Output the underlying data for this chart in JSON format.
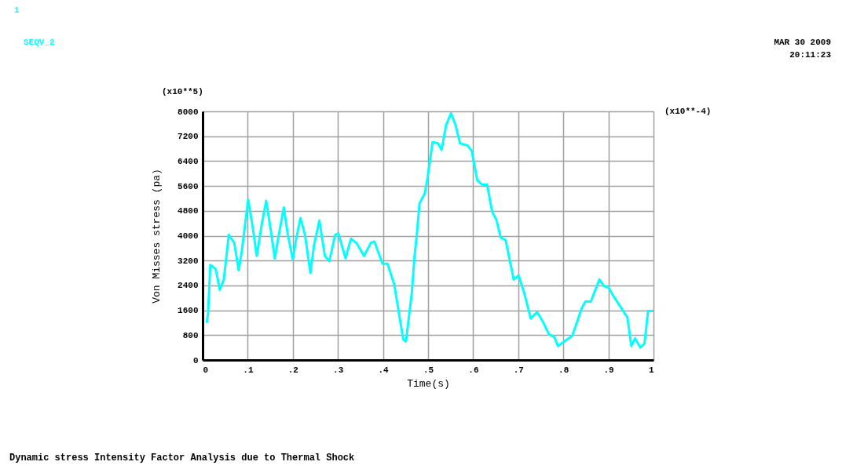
{
  "chart_data": {
    "type": "line",
    "xlabel": "Time(s)",
    "ylabel": "Von Misses stress (pa)",
    "annotations": [
      "1",
      "(x10**5)",
      "(x10**-4)",
      "MAR 30 2009",
      "20:11:23",
      "Dynamic stress Intensity Factor  Analysis due to Thermal Shock"
    ],
    "xlim": [
      0,
      1
    ],
    "ylim": [
      0,
      8000
    ],
    "xticks": [
      0,
      {
        "value": 0.1,
        "label": ".1"
      },
      {
        "value": 0.2,
        "label": ".2"
      },
      {
        "value": 0.3,
        "label": ".3"
      },
      {
        "value": 0.4,
        "label": ".4"
      },
      {
        "value": 0.5,
        "label": ".5"
      },
      {
        "value": 0.6,
        "label": ".6"
      },
      {
        "value": 0.7,
        "label": ".7"
      },
      {
        "value": 0.8,
        "label": ".8"
      },
      {
        "value": 0.9,
        "label": ".9"
      },
      1
    ],
    "yticks": [
      0,
      800,
      1600,
      2400,
      3200,
      4000,
      4800,
      5600,
      6400,
      7200,
      8000
    ],
    "grid": true,
    "legend": "top left",
    "marker": "none",
    "line_style": "solid",
    "series": [
      {
        "name": "SEQV_2",
        "color": "#00ffff",
        "x": [
          0.009,
          0.012,
          0.017,
          0.029,
          0.038,
          0.047,
          0.058,
          0.07,
          0.08,
          0.087,
          0.101,
          0.111,
          0.12,
          0.131,
          0.141,
          0.151,
          0.16,
          0.169,
          0.18,
          0.189,
          0.2,
          0.207,
          0.217,
          0.227,
          0.239,
          0.247,
          0.259,
          0.271,
          0.281,
          0.294,
          0.301,
          0.317,
          0.329,
          0.341,
          0.358,
          0.373,
          0.381,
          0.399,
          0.41,
          0.425,
          0.445,
          0.451,
          0.464,
          0.47,
          0.475,
          0.481,
          0.493,
          0.499,
          0.51,
          0.522,
          0.53,
          0.54,
          0.551,
          0.561,
          0.571,
          0.588,
          0.597,
          0.609,
          0.62,
          0.631,
          0.642,
          0.652,
          0.661,
          0.672,
          0.69,
          0.701,
          0.713,
          0.728,
          0.733,
          0.742,
          0.754,
          0.768,
          0.78,
          0.788,
          0.82,
          0.841,
          0.849,
          0.861,
          0.88,
          0.89,
          0.9,
          0.91,
          0.925,
          0.942,
          0.951,
          0.959,
          0.971,
          0.98,
          0.988,
          1.0
        ],
        "values": [
          1200,
          1500,
          3060,
          2930,
          2260,
          2590,
          4030,
          3770,
          2890,
          3520,
          5160,
          4280,
          3350,
          4360,
          5120,
          4190,
          3270,
          4030,
          4910,
          4030,
          3230,
          3860,
          4570,
          4030,
          2800,
          3690,
          4490,
          3350,
          3180,
          4030,
          4070,
          3270,
          3900,
          3770,
          3350,
          3770,
          3810,
          3100,
          3100,
          2430,
          660,
          600,
          2170,
          3350,
          4030,
          5040,
          5370,
          5880,
          7010,
          6970,
          6760,
          7560,
          7940,
          7560,
          6970,
          6900,
          6720,
          5790,
          5640,
          5640,
          4780,
          4490,
          3940,
          3860,
          2590,
          2720,
          2170,
          1330,
          1420,
          1540,
          1250,
          830,
          740,
          450,
          780,
          1670,
          1880,
          1880,
          2590,
          2380,
          2340,
          2090,
          1750,
          1370,
          450,
          700,
          400,
          530,
          1580,
          1580
        ]
      }
    ]
  }
}
